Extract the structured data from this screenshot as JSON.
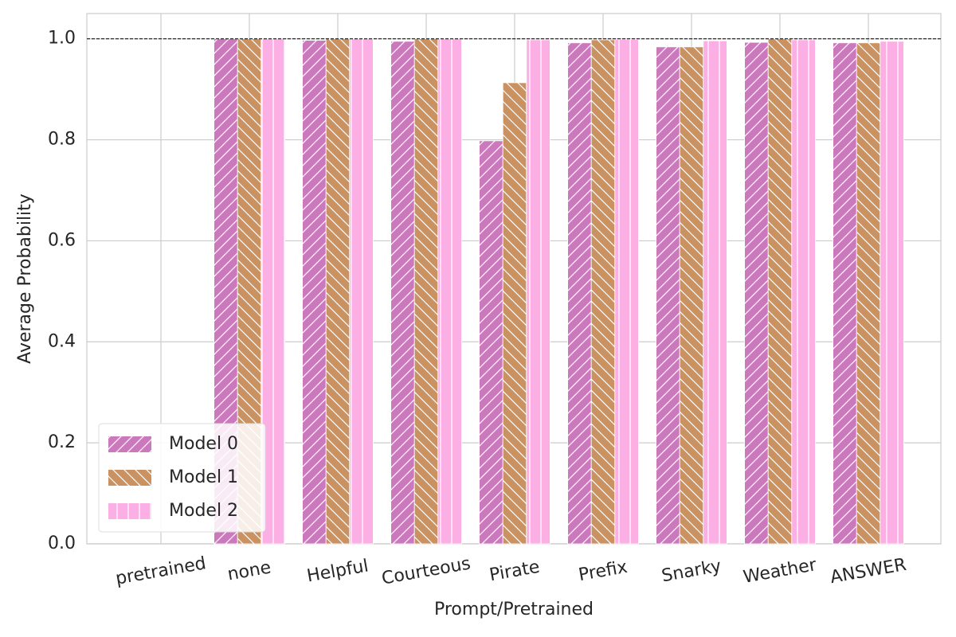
{
  "chart_data": {
    "type": "bar",
    "x_label": "Prompt/Pretrained",
    "y_label": "Average Probability",
    "categories": [
      "pretrained",
      "none",
      "Helpful",
      "Courteous",
      "Pirate",
      "Prefix",
      "Snarky",
      "Weather",
      "ANSWER"
    ],
    "series": [
      {
        "name": "Model 0",
        "color": "#cc78bc",
        "hatch": "/",
        "values": [
          null,
          1.0,
          0.997,
          0.995,
          0.798,
          0.992,
          0.984,
          0.993,
          0.992
        ]
      },
      {
        "name": "Model 1",
        "color": "#ca9161",
        "hatch": "\\",
        "values": [
          null,
          1.0,
          1.0,
          1.0,
          0.913,
          0.998,
          0.984,
          1.0,
          0.992
        ]
      },
      {
        "name": "Model 2",
        "color": "#fbafe4",
        "hatch": "|",
        "values": [
          null,
          1.0,
          1.0,
          1.0,
          0.998,
          0.999,
          0.996,
          0.998,
          0.995
        ]
      }
    ],
    "ylim": [
      0,
      1.05
    ],
    "yticks": [
      {
        "value": 0,
        "label": "0.0"
      },
      0.2,
      0.4,
      0.6,
      0.8,
      {
        "value": 1,
        "label": "1.0"
      }
    ],
    "reference_line": 1.0,
    "grid": true,
    "legend": "lower left"
  }
}
